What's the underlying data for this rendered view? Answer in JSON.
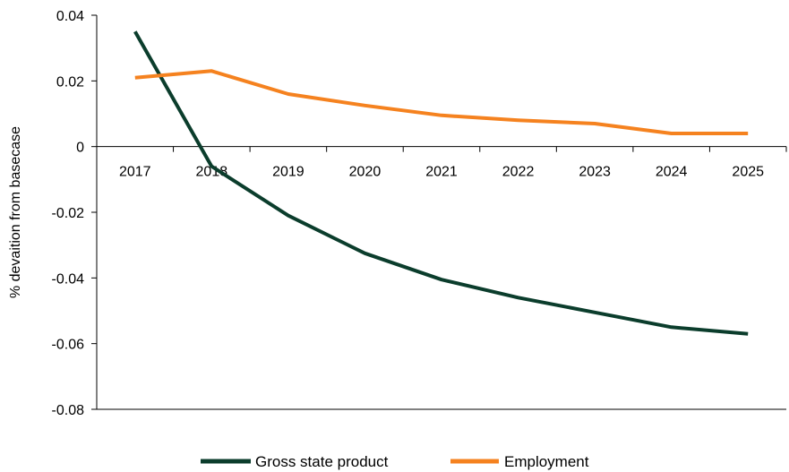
{
  "chart_data": {
    "type": "line",
    "title": "",
    "xlabel": "",
    "ylabel": "% devaition from basecase",
    "categories": [
      "2017",
      "2018",
      "2019",
      "2020",
      "2021",
      "2022",
      "2023",
      "2024",
      "2025"
    ],
    "ylim": [
      -0.08,
      0.04
    ],
    "yticks": [
      "0.04",
      "0.02",
      "0",
      "-0.02",
      "-0.04",
      "-0.06",
      "-0.08"
    ],
    "ytick_values": [
      0.04,
      0.02,
      0,
      -0.02,
      -0.04,
      -0.06,
      -0.08
    ],
    "grid": false,
    "legend_position": "bottom",
    "series": [
      {
        "name": "Gross state product",
        "color": "#0b3d2c",
        "values": [
          0.035,
          -0.006,
          -0.021,
          -0.0325,
          -0.0405,
          -0.046,
          -0.0505,
          -0.055,
          -0.057
        ]
      },
      {
        "name": "Employment",
        "color": "#f5821f",
        "values": [
          0.021,
          0.023,
          0.016,
          0.0125,
          0.0095,
          0.008,
          0.007,
          0.004,
          0.004
        ]
      }
    ]
  }
}
